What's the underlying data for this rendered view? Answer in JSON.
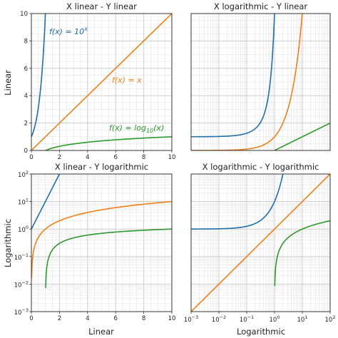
{
  "figure": {
    "ylabel_top": "Linear",
    "ylabel_bottom": "Logarithmic",
    "xlabel_left": "Linear",
    "xlabel_right": "Logarithmic"
  },
  "annotations": {
    "exp": "f(x) = 10ˣ",
    "lin": "f(x) = x",
    "log": "f(x) = log₁₀(x)"
  },
  "colors": {
    "exp": "#1f6fa8",
    "lin": "#f07f17",
    "log": "#2a9a2a",
    "grid_major": "#c8c8c8",
    "grid_minor": "#e4e4e4",
    "frame": "#333333"
  },
  "chart_data": [
    {
      "type": "line",
      "title": "X linear - Y linear",
      "xscale": "linear",
      "yscale": "linear",
      "xlim": [
        0,
        10
      ],
      "ylim": [
        0,
        10
      ],
      "xticks": [
        0,
        2,
        4,
        6,
        8,
        10
      ],
      "yticks": [
        0,
        2,
        4,
        6,
        8,
        10
      ],
      "grid": true,
      "series": [
        {
          "name": "f(x) = 10^x",
          "function": "10^x",
          "color": "#1f6fa8"
        },
        {
          "name": "f(x) = x",
          "function": "x",
          "color": "#f07f17"
        },
        {
          "name": "f(x) = log10(x)",
          "function": "log10(x)",
          "color": "#2a9a2a"
        }
      ]
    },
    {
      "type": "line",
      "title": "X logarithmic - Y linear",
      "xscale": "log",
      "yscale": "linear",
      "xlim": [
        0.001,
        100
      ],
      "ylim": [
        0,
        10
      ],
      "grid": true,
      "series": [
        {
          "name": "f(x) = 10^x",
          "function": "10^x",
          "color": "#1f6fa8"
        },
        {
          "name": "f(x) = x",
          "function": "x",
          "color": "#f07f17"
        },
        {
          "name": "f(x) = log10(x)",
          "function": "log10(x)",
          "color": "#2a9a2a"
        }
      ]
    },
    {
      "type": "line",
      "title": "X linear - Y logarithmic",
      "xscale": "linear",
      "yscale": "log",
      "xlim": [
        0,
        10
      ],
      "ylim": [
        0.001,
        100
      ],
      "xticks": [
        0,
        2,
        4,
        6,
        8,
        10
      ],
      "yticks": [
        "10^-3",
        "10^-2",
        "10^-1",
        "10^0",
        "10^1",
        "10^2"
      ],
      "grid": true,
      "series": [
        {
          "name": "f(x) = 10^x",
          "function": "10^x",
          "color": "#1f6fa8"
        },
        {
          "name": "f(x) = x",
          "function": "x",
          "color": "#f07f17"
        },
        {
          "name": "f(x) = log10(x)",
          "function": "log10(x)",
          "color": "#2a9a2a"
        }
      ]
    },
    {
      "type": "line",
      "title": "X logarithmic - Y logarithmic",
      "xscale": "log",
      "yscale": "log",
      "xlim": [
        0.001,
        100
      ],
      "ylim": [
        0.001,
        100
      ],
      "xticks": [
        "10^-3",
        "10^-2",
        "10^-1",
        "10^0",
        "10^1",
        "10^2"
      ],
      "grid": true,
      "series": [
        {
          "name": "f(x) = 10^x",
          "function": "10^x",
          "color": "#1f6fa8"
        },
        {
          "name": "f(x) = x",
          "function": "x",
          "color": "#f07f17"
        },
        {
          "name": "f(x) = log10(x)",
          "function": "log10(x)",
          "color": "#2a9a2a"
        }
      ]
    }
  ]
}
